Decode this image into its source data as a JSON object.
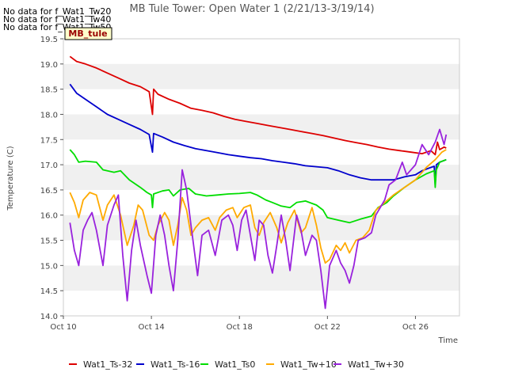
{
  "nodata_notes": [
    "No data for f_Wat1_Tw20",
    "No data for f_Wat1_Tw40",
    "No data for f_Wat1_Tw50"
  ],
  "badge": "MB_tule",
  "chart_data": {
    "type": "line",
    "title": "MB Tule Tower: Open Water 1 (2/21/13-3/19/14)",
    "xlabel": "Time",
    "ylabel": "Temperature (C)",
    "xlim": [
      10,
      28
    ],
    "ylim": [
      14.0,
      19.5
    ],
    "x_ticks": [
      {
        "v": 10,
        "label": "Oct 10"
      },
      {
        "v": 14,
        "label": "Oct 14"
      },
      {
        "v": 18,
        "label": "Oct 18"
      },
      {
        "v": 22,
        "label": "Oct 22"
      },
      {
        "v": 26,
        "label": "Oct 26"
      }
    ],
    "y_ticks": [
      14.0,
      14.5,
      15.0,
      15.5,
      16.0,
      16.5,
      17.0,
      17.5,
      18.0,
      18.5,
      19.0,
      19.5
    ],
    "grid": "alternating horizontal bands",
    "legend_position": "bottom",
    "series": [
      {
        "name": "Wat1_Ts-32",
        "color": "#dd0000",
        "points": [
          [
            10.3,
            19.15
          ],
          [
            10.6,
            19.05
          ],
          [
            11,
            19.0
          ],
          [
            11.5,
            18.92
          ],
          [
            12,
            18.82
          ],
          [
            12.5,
            18.72
          ],
          [
            13,
            18.62
          ],
          [
            13.5,
            18.55
          ],
          [
            13.9,
            18.45
          ],
          [
            14.05,
            18.0
          ],
          [
            14.1,
            18.5
          ],
          [
            14.3,
            18.4
          ],
          [
            14.8,
            18.3
          ],
          [
            15.3,
            18.22
          ],
          [
            15.8,
            18.12
          ],
          [
            16.3,
            18.08
          ],
          [
            16.8,
            18.03
          ],
          [
            17.3,
            17.96
          ],
          [
            17.8,
            17.9
          ],
          [
            18.3,
            17.86
          ],
          [
            18.8,
            17.82
          ],
          [
            19.3,
            17.78
          ],
          [
            19.8,
            17.74
          ],
          [
            20.3,
            17.7
          ],
          [
            20.8,
            17.66
          ],
          [
            21.3,
            17.62
          ],
          [
            21.8,
            17.58
          ],
          [
            22.3,
            17.53
          ],
          [
            22.8,
            17.48
          ],
          [
            23.3,
            17.44
          ],
          [
            23.8,
            17.4
          ],
          [
            24.3,
            17.35
          ],
          [
            24.8,
            17.31
          ],
          [
            25.3,
            17.28
          ],
          [
            25.8,
            17.25
          ],
          [
            26.3,
            17.22
          ],
          [
            26.7,
            17.28
          ],
          [
            26.9,
            17.2
          ],
          [
            27.0,
            17.45
          ],
          [
            27.1,
            17.3
          ],
          [
            27.3,
            17.35
          ],
          [
            27.4,
            17.33
          ]
        ]
      },
      {
        "name": "Wat1_Ts-16",
        "color": "#0000cc",
        "points": [
          [
            10.3,
            18.6
          ],
          [
            10.6,
            18.42
          ],
          [
            11,
            18.3
          ],
          [
            11.5,
            18.15
          ],
          [
            12,
            18.0
          ],
          [
            12.5,
            17.9
          ],
          [
            13,
            17.8
          ],
          [
            13.5,
            17.7
          ],
          [
            13.9,
            17.6
          ],
          [
            14.05,
            17.25
          ],
          [
            14.1,
            17.62
          ],
          [
            14.5,
            17.55
          ],
          [
            15,
            17.45
          ],
          [
            15.5,
            17.38
          ],
          [
            16,
            17.32
          ],
          [
            16.5,
            17.28
          ],
          [
            17,
            17.24
          ],
          [
            17.5,
            17.2
          ],
          [
            18,
            17.17
          ],
          [
            18.5,
            17.14
          ],
          [
            19,
            17.12
          ],
          [
            19.5,
            17.08
          ],
          [
            20,
            17.05
          ],
          [
            20.5,
            17.02
          ],
          [
            21,
            16.98
          ],
          [
            21.5,
            16.96
          ],
          [
            22,
            16.94
          ],
          [
            22.5,
            16.88
          ],
          [
            23,
            16.8
          ],
          [
            23.5,
            16.74
          ],
          [
            24,
            16.7
          ],
          [
            24.5,
            16.7
          ],
          [
            25,
            16.7
          ],
          [
            25.5,
            16.76
          ],
          [
            26,
            16.8
          ],
          [
            26.3,
            16.88
          ],
          [
            26.6,
            16.93
          ],
          [
            26.85,
            16.97
          ],
          [
            26.9,
            16.6
          ],
          [
            26.95,
            17.0
          ],
          [
            27.1,
            17.05
          ],
          [
            27.4,
            17.1
          ]
        ]
      },
      {
        "name": "Wat1_Ts0",
        "color": "#00dd00",
        "points": [
          [
            10.3,
            17.3
          ],
          [
            10.5,
            17.2
          ],
          [
            10.7,
            17.05
          ],
          [
            11,
            17.07
          ],
          [
            11.5,
            17.05
          ],
          [
            11.8,
            16.9
          ],
          [
            12.3,
            16.85
          ],
          [
            12.6,
            16.88
          ],
          [
            13,
            16.7
          ],
          [
            13.5,
            16.55
          ],
          [
            13.8,
            16.45
          ],
          [
            14.0,
            16.4
          ],
          [
            14.05,
            16.15
          ],
          [
            14.1,
            16.42
          ],
          [
            14.5,
            16.48
          ],
          [
            14.8,
            16.5
          ],
          [
            15,
            16.38
          ],
          [
            15.3,
            16.5
          ],
          [
            15.7,
            16.53
          ],
          [
            16,
            16.42
          ],
          [
            16.5,
            16.38
          ],
          [
            17,
            16.4
          ],
          [
            17.5,
            16.42
          ],
          [
            18,
            16.43
          ],
          [
            18.5,
            16.45
          ],
          [
            18.8,
            16.4
          ],
          [
            19.2,
            16.3
          ],
          [
            19.5,
            16.25
          ],
          [
            19.9,
            16.18
          ],
          [
            20.3,
            16.15
          ],
          [
            20.6,
            16.25
          ],
          [
            21,
            16.28
          ],
          [
            21.5,
            16.2
          ],
          [
            21.8,
            16.1
          ],
          [
            22,
            15.95
          ],
          [
            22.5,
            15.9
          ],
          [
            23,
            15.85
          ],
          [
            23.5,
            15.92
          ],
          [
            24,
            15.98
          ],
          [
            24.3,
            16.15
          ],
          [
            24.7,
            16.25
          ],
          [
            25,
            16.38
          ],
          [
            25.5,
            16.55
          ],
          [
            26,
            16.7
          ],
          [
            26.5,
            16.82
          ],
          [
            26.85,
            16.88
          ],
          [
            26.9,
            16.55
          ],
          [
            26.95,
            16.9
          ],
          [
            27.1,
            17.05
          ],
          [
            27.4,
            17.1
          ]
        ]
      },
      {
        "name": "Wat1_Tw+10",
        "color": "#ffaa00",
        "points": [
          [
            10.3,
            16.45
          ],
          [
            10.5,
            16.25
          ],
          [
            10.7,
            15.95
          ],
          [
            10.9,
            16.3
          ],
          [
            11.2,
            16.45
          ],
          [
            11.5,
            16.4
          ],
          [
            11.8,
            15.9
          ],
          [
            12,
            16.2
          ],
          [
            12.3,
            16.4
          ],
          [
            12.6,
            16.0
          ],
          [
            12.9,
            15.4
          ],
          [
            13.2,
            15.8
          ],
          [
            13.4,
            16.2
          ],
          [
            13.6,
            16.1
          ],
          [
            13.9,
            15.6
          ],
          [
            14.1,
            15.5
          ],
          [
            14.3,
            15.8
          ],
          [
            14.6,
            16.05
          ],
          [
            14.8,
            15.9
          ],
          [
            15.0,
            15.4
          ],
          [
            15.2,
            15.8
          ],
          [
            15.4,
            16.35
          ],
          [
            15.6,
            16.1
          ],
          [
            15.8,
            15.6
          ],
          [
            16.0,
            15.75
          ],
          [
            16.3,
            15.9
          ],
          [
            16.6,
            15.95
          ],
          [
            16.9,
            15.7
          ],
          [
            17.1,
            15.95
          ],
          [
            17.4,
            16.1
          ],
          [
            17.7,
            16.15
          ],
          [
            17.9,
            15.95
          ],
          [
            18.2,
            16.15
          ],
          [
            18.5,
            16.2
          ],
          [
            18.7,
            15.75
          ],
          [
            18.9,
            15.6
          ],
          [
            19.1,
            15.85
          ],
          [
            19.4,
            16.05
          ],
          [
            19.7,
            15.75
          ],
          [
            19.9,
            15.45
          ],
          [
            20.2,
            15.85
          ],
          [
            20.5,
            16.1
          ],
          [
            20.8,
            15.65
          ],
          [
            21.0,
            15.75
          ],
          [
            21.3,
            16.15
          ],
          [
            21.5,
            15.8
          ],
          [
            21.7,
            15.35
          ],
          [
            21.9,
            15.05
          ],
          [
            22.1,
            15.12
          ],
          [
            22.4,
            15.4
          ],
          [
            22.6,
            15.3
          ],
          [
            22.8,
            15.45
          ],
          [
            23.0,
            15.25
          ],
          [
            23.3,
            15.5
          ],
          [
            23.6,
            15.55
          ],
          [
            23.9,
            15.7
          ],
          [
            24.2,
            16.1
          ],
          [
            24.6,
            16.25
          ],
          [
            25,
            16.4
          ],
          [
            25.5,
            16.55
          ],
          [
            26,
            16.7
          ],
          [
            26.5,
            16.95
          ],
          [
            26.9,
            17.1
          ],
          [
            27.2,
            17.25
          ],
          [
            27.4,
            17.3
          ]
        ]
      },
      {
        "name": "Wat1_Tw+30",
        "color": "#9922dd",
        "points": [
          [
            10.3,
            15.85
          ],
          [
            10.5,
            15.3
          ],
          [
            10.7,
            15.0
          ],
          [
            10.9,
            15.7
          ],
          [
            11.1,
            15.9
          ],
          [
            11.3,
            16.05
          ],
          [
            11.5,
            15.7
          ],
          [
            11.8,
            15.0
          ],
          [
            12.0,
            15.8
          ],
          [
            12.3,
            16.2
          ],
          [
            12.5,
            16.4
          ],
          [
            12.7,
            15.2
          ],
          [
            12.9,
            14.3
          ],
          [
            13.1,
            15.3
          ],
          [
            13.3,
            15.9
          ],
          [
            13.5,
            15.4
          ],
          [
            13.8,
            14.8
          ],
          [
            14.0,
            14.45
          ],
          [
            14.2,
            15.6
          ],
          [
            14.4,
            16.0
          ],
          [
            14.6,
            15.6
          ],
          [
            14.8,
            15.0
          ],
          [
            15.0,
            14.5
          ],
          [
            15.2,
            15.5
          ],
          [
            15.4,
            16.9
          ],
          [
            15.6,
            16.5
          ],
          [
            15.8,
            15.8
          ],
          [
            16.1,
            14.8
          ],
          [
            16.3,
            15.6
          ],
          [
            16.6,
            15.7
          ],
          [
            16.9,
            15.2
          ],
          [
            17.2,
            15.9
          ],
          [
            17.5,
            16.0
          ],
          [
            17.7,
            15.8
          ],
          [
            17.9,
            15.3
          ],
          [
            18.1,
            15.9
          ],
          [
            18.3,
            16.1
          ],
          [
            18.5,
            15.6
          ],
          [
            18.7,
            15.1
          ],
          [
            18.9,
            15.9
          ],
          [
            19.1,
            15.8
          ],
          [
            19.3,
            15.2
          ],
          [
            19.5,
            14.85
          ],
          [
            19.7,
            15.4
          ],
          [
            19.9,
            16.0
          ],
          [
            20.1,
            15.5
          ],
          [
            20.3,
            14.9
          ],
          [
            20.6,
            16.0
          ],
          [
            20.8,
            15.7
          ],
          [
            21.0,
            15.2
          ],
          [
            21.3,
            15.6
          ],
          [
            21.5,
            15.5
          ],
          [
            21.7,
            14.9
          ],
          [
            21.9,
            14.15
          ],
          [
            22.1,
            15.0
          ],
          [
            22.4,
            15.3
          ],
          [
            22.6,
            15.05
          ],
          [
            22.8,
            14.9
          ],
          [
            23.0,
            14.65
          ],
          [
            23.2,
            15.0
          ],
          [
            23.4,
            15.5
          ],
          [
            23.7,
            15.55
          ],
          [
            24.0,
            15.65
          ],
          [
            24.2,
            16.0
          ],
          [
            24.6,
            16.3
          ],
          [
            24.8,
            16.6
          ],
          [
            25.1,
            16.7
          ],
          [
            25.4,
            17.05
          ],
          [
            25.6,
            16.8
          ],
          [
            26.0,
            17.0
          ],
          [
            26.3,
            17.4
          ],
          [
            26.6,
            17.2
          ],
          [
            26.9,
            17.45
          ],
          [
            27.1,
            17.7
          ],
          [
            27.3,
            17.4
          ],
          [
            27.4,
            17.6
          ]
        ]
      }
    ]
  }
}
